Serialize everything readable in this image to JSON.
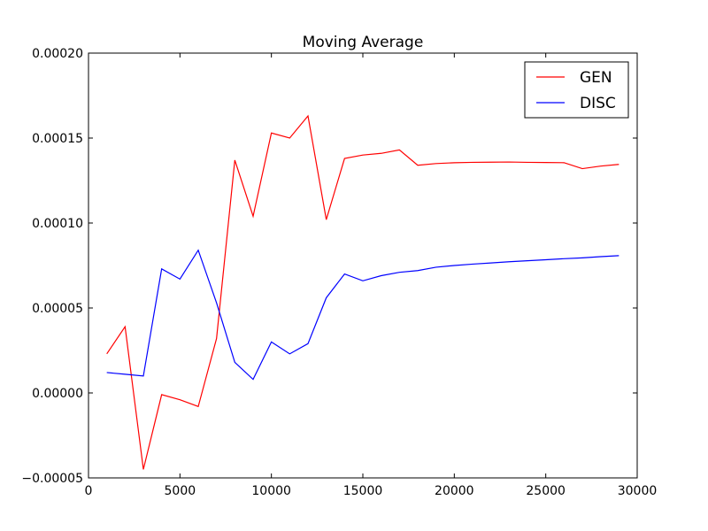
{
  "chart_data": {
    "type": "line",
    "title": "Moving Average",
    "xlabel": "",
    "ylabel": "",
    "xlim": [
      0,
      30000
    ],
    "ylim": [
      -5e-05,
      0.0002
    ],
    "xticks": [
      0,
      5000,
      10000,
      15000,
      20000,
      25000,
      30000
    ],
    "xtick_labels": [
      "0",
      "5000",
      "10000",
      "15000",
      "20000",
      "25000",
      "30000"
    ],
    "yticks": [
      -5e-05,
      0.0,
      5e-05,
      0.0001,
      0.00015,
      0.0002
    ],
    "ytick_labels": [
      "−0.00005",
      "0.00000",
      "0.00005",
      "0.00010",
      "0.00015",
      "0.00020"
    ],
    "grid": false,
    "legend_position": "top-right",
    "x": [
      1000,
      2000,
      3000,
      4000,
      5000,
      6000,
      7000,
      8000,
      9000,
      10000,
      11000,
      12000,
      13000,
      14000,
      15000,
      16000,
      17000,
      18000,
      19000,
      20000,
      21000,
      22000,
      23000,
      24000,
      25000,
      26000,
      27000,
      28000,
      29000
    ],
    "series": [
      {
        "name": "GEN",
        "color": "#ff0000",
        "values": [
          2.3e-05,
          3.9e-05,
          -4.5e-05,
          -1e-06,
          -4e-06,
          -8e-06,
          3.2e-05,
          0.000137,
          0.000104,
          0.000153,
          0.00015,
          0.000163,
          0.000102,
          0.000138,
          0.00014,
          0.000141,
          0.000143,
          0.000134,
          0.000135,
          0.0001355,
          0.0001357,
          0.0001358,
          0.0001359,
          0.0001357,
          0.0001356,
          0.0001355,
          0.000132,
          0.0001335,
          0.0001345
        ]
      },
      {
        "name": "DISC",
        "color": "#0000ff",
        "values": [
          1.2e-05,
          1.1e-05,
          1e-05,
          7.3e-05,
          6.7e-05,
          8.4e-05,
          5.3e-05,
          1.8e-05,
          8e-06,
          3e-05,
          2.3e-05,
          2.9e-05,
          5.6e-05,
          7e-05,
          6.6e-05,
          6.9e-05,
          7.1e-05,
          7.2e-05,
          7.4e-05,
          7.5e-05,
          7.58e-05,
          7.65e-05,
          7.72e-05,
          7.78e-05,
          7.84e-05,
          7.9e-05,
          7.95e-05,
          8.02e-05,
          8.08e-05
        ]
      }
    ]
  }
}
